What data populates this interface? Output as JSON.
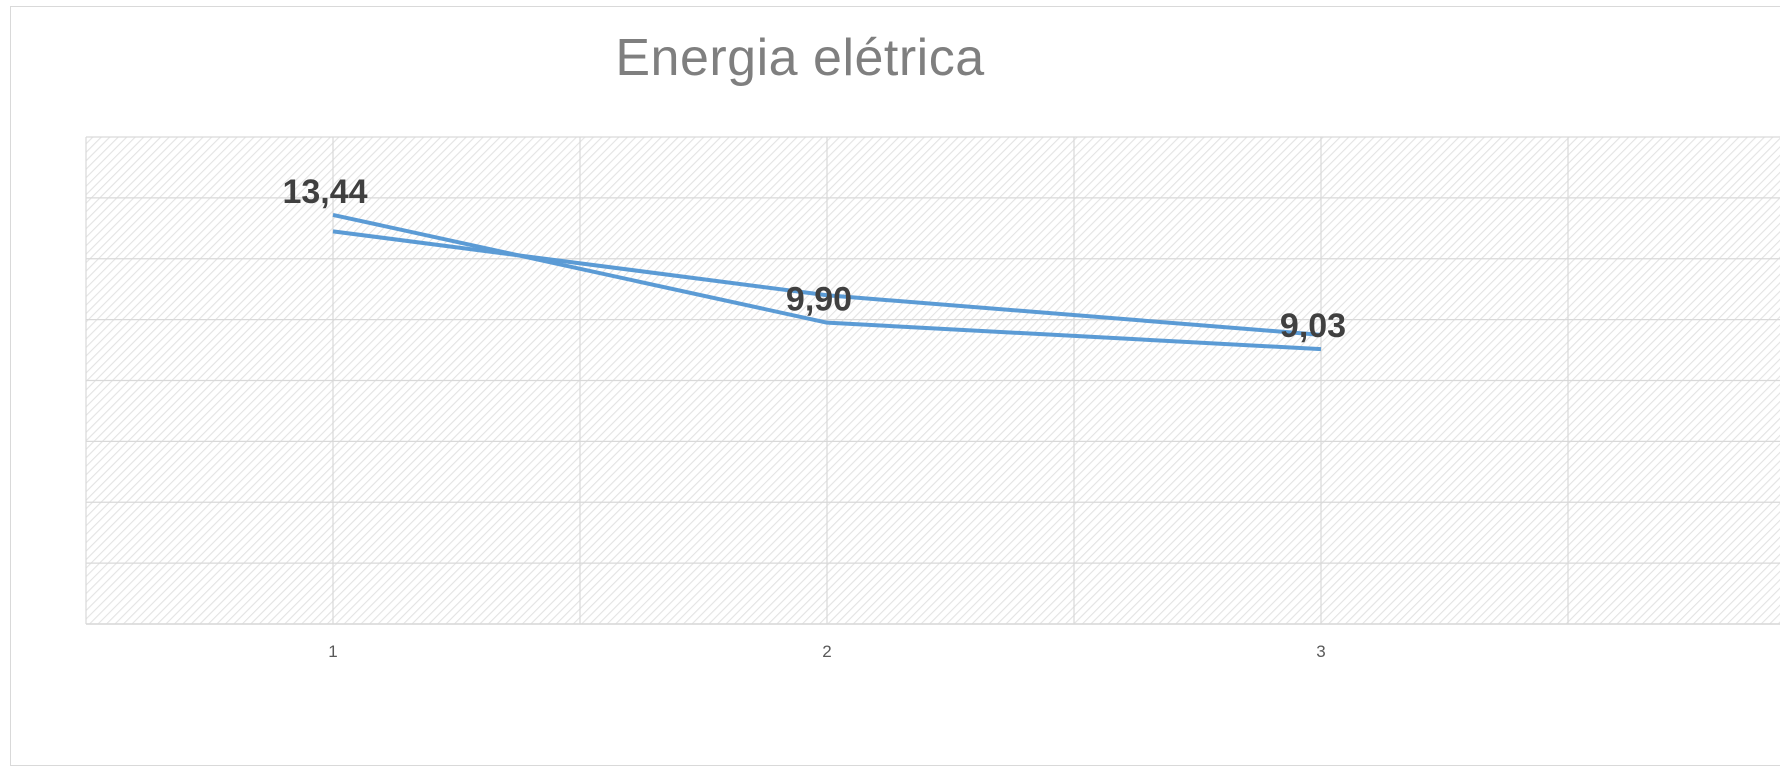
{
  "chart_data": {
    "type": "line",
    "title": "Energia elétrica",
    "categories": [
      "1",
      "2",
      "3"
    ],
    "series": [
      {
        "values": [
          13.44,
          9.9,
          9.03
        ],
        "color": "#5b9bd5",
        "data_labels": [
          "13,44",
          "9,90",
          "9,03"
        ]
      },
      {
        "values": [
          12.9,
          10.8,
          9.5
        ],
        "color": "#5b9bd5",
        "trendline": true
      }
    ],
    "ylim": [
      0,
      16
    ],
    "grid": true,
    "plot_pattern": "diagonal-hatch",
    "colors": {
      "line": "#5b9bd5",
      "grid": "#d9d9d9",
      "title": "#7f7f7f",
      "label": "#404040"
    }
  }
}
